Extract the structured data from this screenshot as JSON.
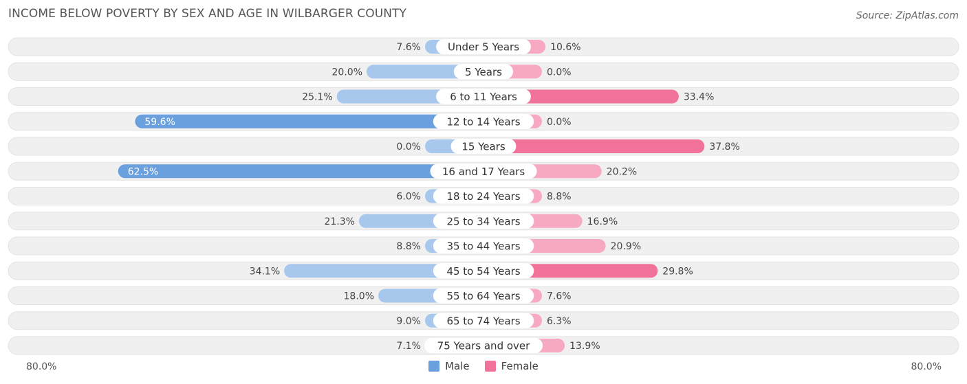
{
  "header": {
    "title": "INCOME BELOW POVERTY BY SEX AND AGE IN WILBARGER COUNTY",
    "source": "Source: ZipAtlas.com"
  },
  "axis": {
    "left_label": "80.0%",
    "right_label": "80.0%"
  },
  "legend": {
    "male_label": "Male",
    "female_label": "Female"
  },
  "colors": {
    "male_dark": "#6aa0dd",
    "male_light": "#a7c7ec",
    "female_dark": "#f27399",
    "female_light": "#f6a9c1",
    "row_bg": "#f0f0f0"
  },
  "chart_data": {
    "type": "bar",
    "orientation": "horizontal-diverging",
    "title": "INCOME BELOW POVERTY BY SEX AND AGE IN WILBARGER COUNTY",
    "xlim": [
      -80,
      80
    ],
    "categories": [
      "Under 5 Years",
      "5 Years",
      "6 to 11 Years",
      "12 to 14 Years",
      "15 Years",
      "16 and 17 Years",
      "18 to 24 Years",
      "25 to 34 Years",
      "35 to 44 Years",
      "45 to 54 Years",
      "55 to 64 Years",
      "65 to 74 Years",
      "75 Years and over"
    ],
    "series": [
      {
        "name": "Male",
        "values": [
          7.6,
          20.0,
          25.1,
          59.6,
          0.0,
          62.5,
          6.0,
          21.3,
          8.8,
          34.1,
          18.0,
          9.0,
          7.1
        ],
        "labels": [
          "7.6%",
          "20.0%",
          "25.1%",
          "59.6%",
          "0.0%",
          "62.5%",
          "6.0%",
          "21.3%",
          "8.8%",
          "34.1%",
          "18.0%",
          "9.0%",
          "7.1%"
        ]
      },
      {
        "name": "Female",
        "values": [
          10.6,
          0.0,
          33.4,
          0.0,
          37.8,
          20.2,
          8.8,
          16.9,
          20.9,
          29.8,
          7.6,
          6.3,
          13.9
        ],
        "labels": [
          "10.6%",
          "0.0%",
          "33.4%",
          "0.0%",
          "37.8%",
          "20.2%",
          "8.8%",
          "16.9%",
          "20.9%",
          "29.8%",
          "7.6%",
          "6.3%",
          "13.9%"
        ]
      }
    ],
    "legend_position": "bottom-center"
  }
}
